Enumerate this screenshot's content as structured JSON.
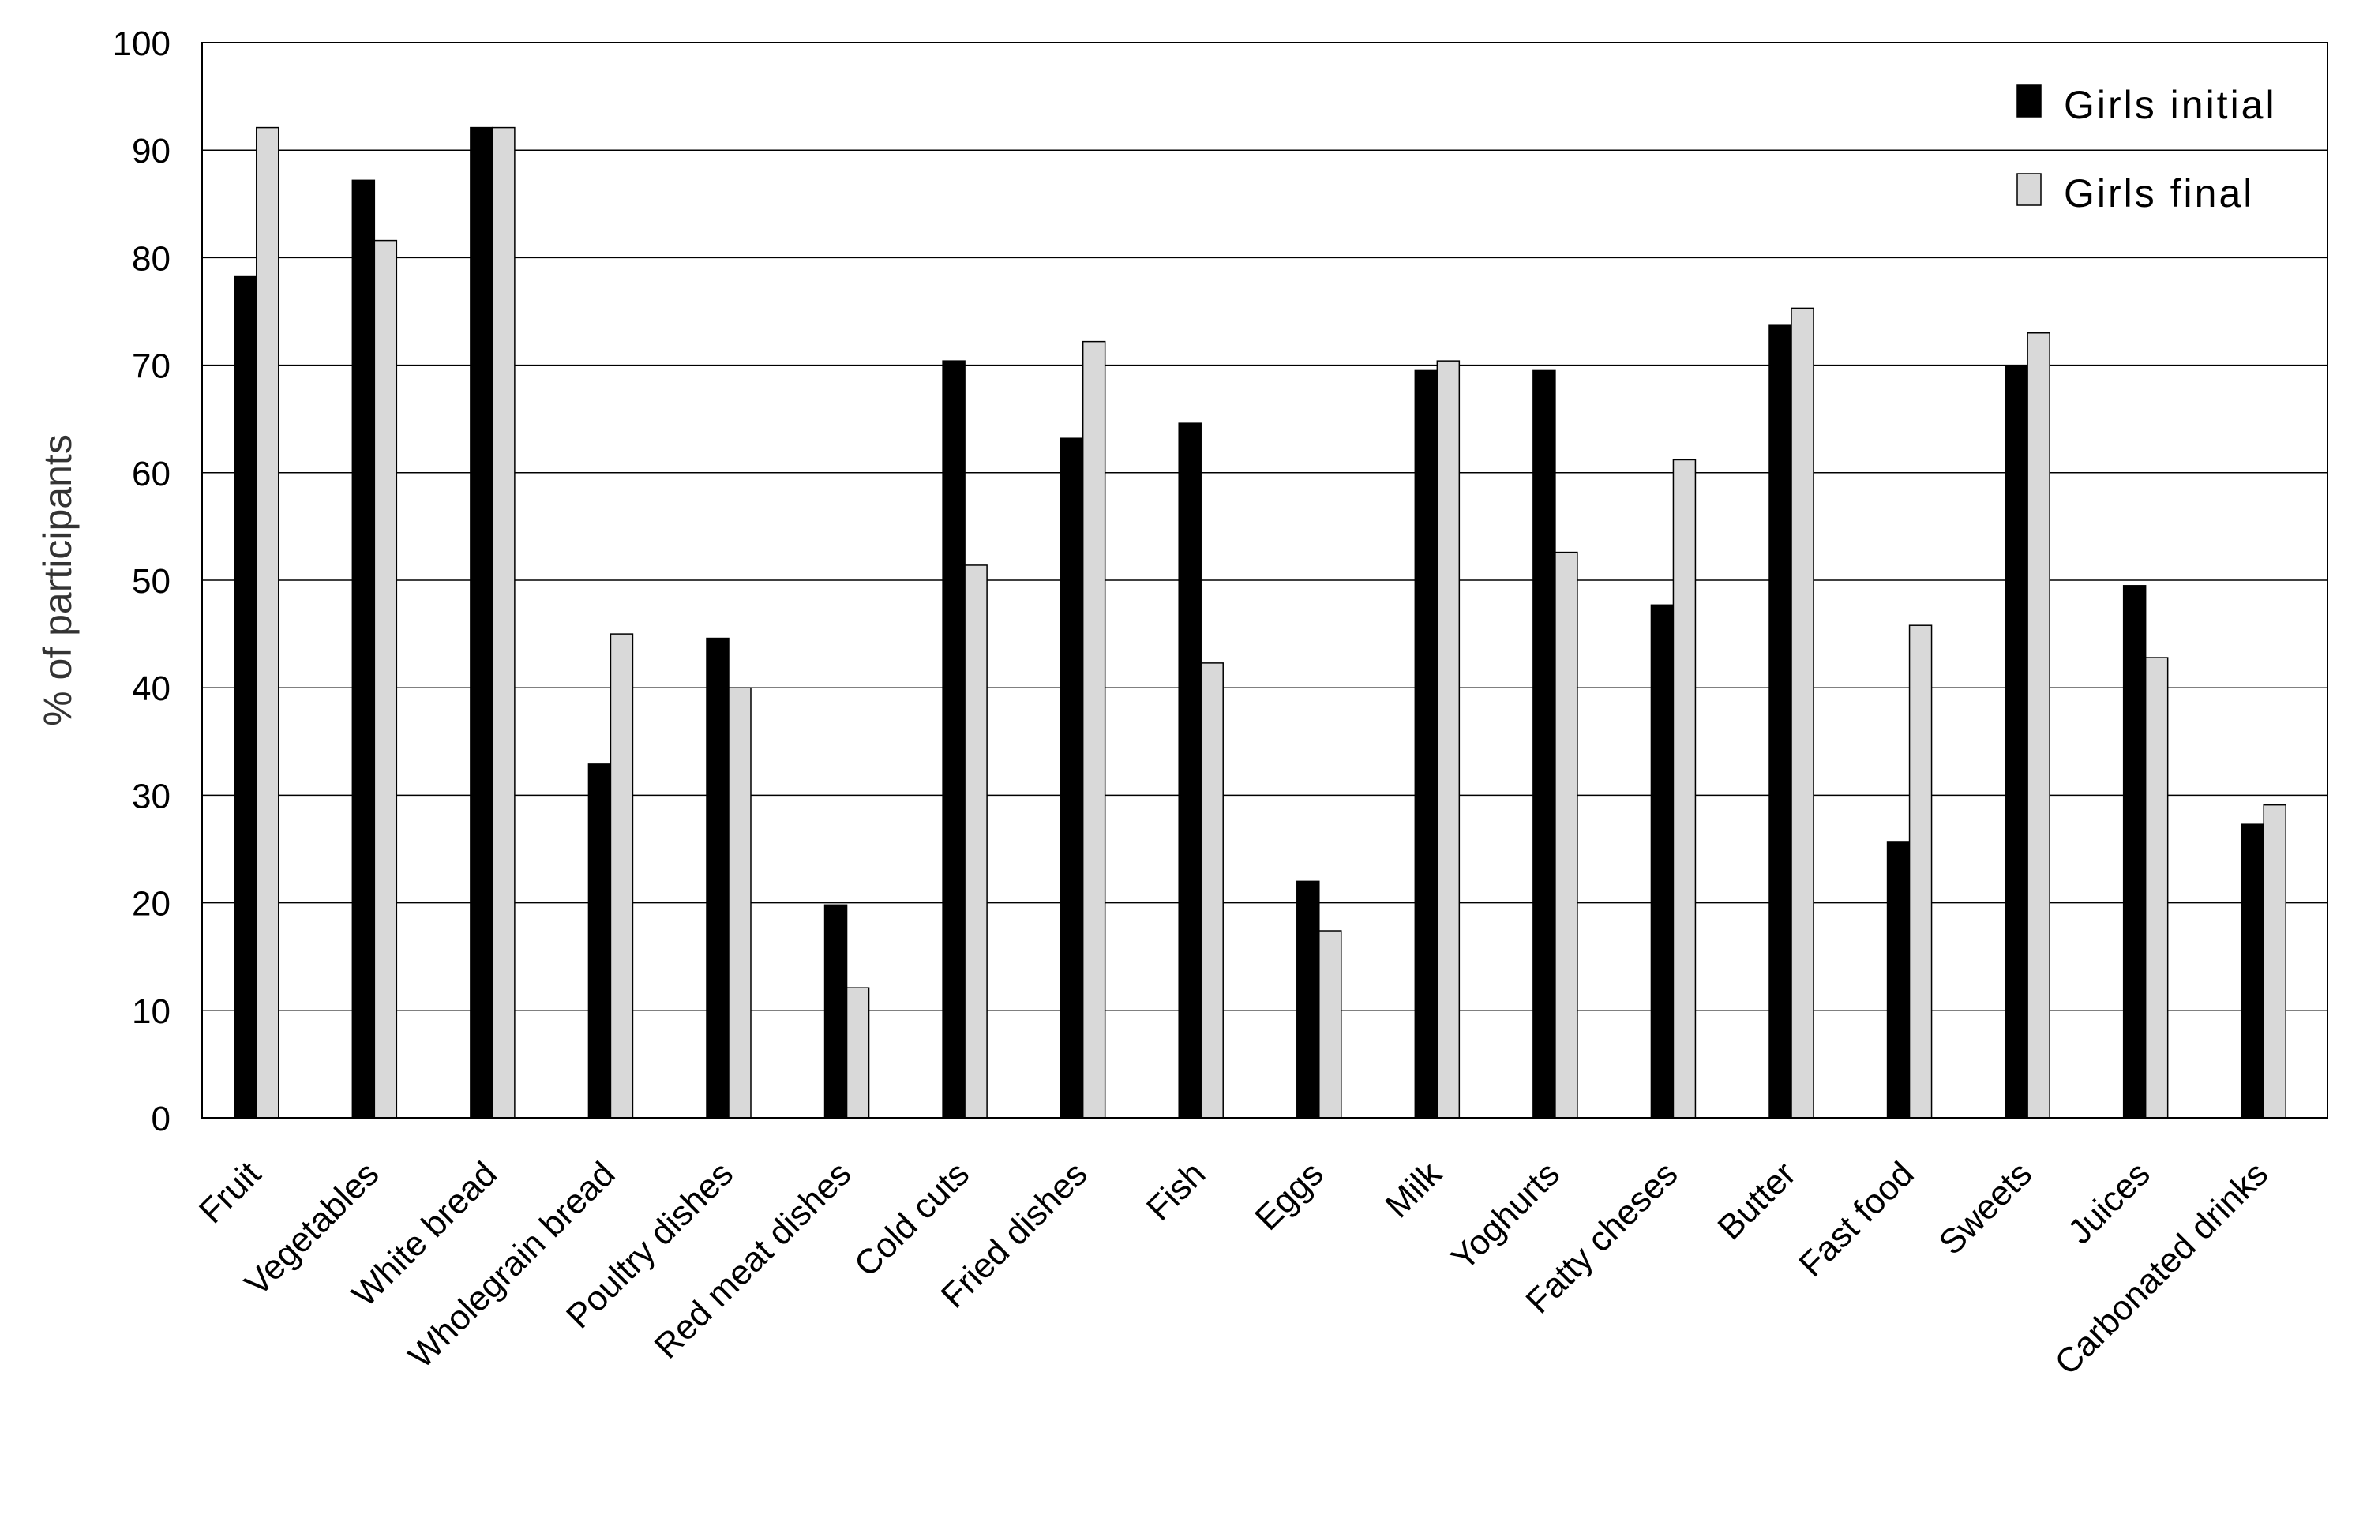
{
  "chart_data": {
    "type": "bar",
    "title": "",
    "xlabel": "",
    "ylabel": "% of participants",
    "ylim": [
      0,
      100
    ],
    "yticks": [
      0,
      10,
      20,
      30,
      40,
      50,
      60,
      70,
      80,
      90,
      100
    ],
    "grid": true,
    "legend_position": "top-right",
    "categories": [
      "Fruit",
      "Vegetables",
      "White bread",
      "Wholegrain bread",
      "Poultry dishes",
      "Red meat dishes",
      "Cold cuts",
      "Fried dishes",
      "Fish",
      "Eggs",
      "Milk",
      "Yoghurts",
      "Fatty cheses",
      "Butter",
      "Fast food",
      "Sweets",
      "Juices",
      "Carbonated drinks"
    ],
    "series": [
      {
        "name": "Girls initial",
        "color": "#000000",
        "values": [
          78.3,
          87.2,
          92.1,
          32.9,
          44.6,
          19.8,
          70.4,
          63.2,
          64.6,
          22.0,
          69.5,
          69.5,
          47.7,
          73.7,
          25.7,
          69.9,
          49.5,
          27.3
        ]
      },
      {
        "name": "Girls final",
        "color": "#d9d9d9",
        "values": [
          92.1,
          81.6,
          92.1,
          45.0,
          40.0,
          12.1,
          51.4,
          72.2,
          42.3,
          17.4,
          70.4,
          52.6,
          61.2,
          75.3,
          45.8,
          73.0,
          42.8,
          29.1
        ]
      }
    ]
  }
}
